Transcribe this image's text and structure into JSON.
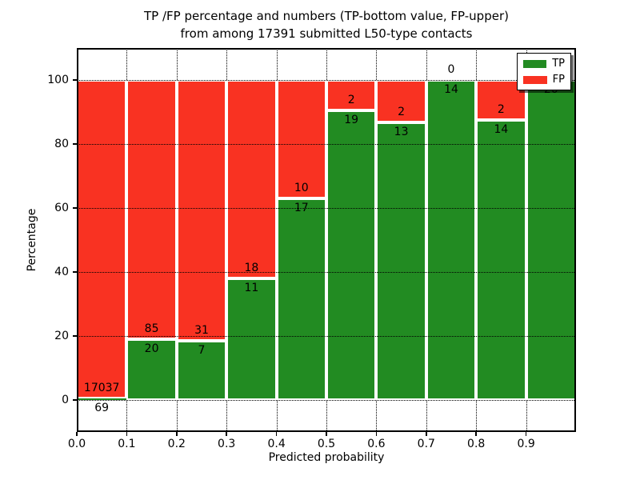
{
  "chart_data": {
    "type": "bar",
    "stacked": true,
    "orientation": "vertical",
    "title_lines": [
      "TP /FP percentage and numbers (TP-bottom value, FP-upper)",
      "from among 17391 submitted L50-type contacts"
    ],
    "xlabel": "Predicted probability",
    "ylabel": "Percentage",
    "xlim": [
      0,
      1
    ],
    "ylim": [
      -10,
      110
    ],
    "xtick_values": [
      0,
      0.1,
      0.2,
      0.3,
      0.4,
      0.5,
      0.6,
      0.7,
      0.8,
      0.9
    ],
    "xtick_labels": [
      "0.0",
      "0.1",
      "0.2",
      "0.3",
      "0.4",
      "0.5",
      "0.6",
      "0.7",
      "0.8",
      "0.9"
    ],
    "ytick_values": [
      0,
      20,
      40,
      60,
      80,
      100
    ],
    "ytick_labels": [
      "0",
      "20",
      "40",
      "60",
      "80",
      "100"
    ],
    "grid_style": "dotted",
    "bar_edge_color": "#ffffff",
    "value_semantics": "each bin drawn as percent of bin total (tp+fp=100%); labels show raw counts, TP below boundary, FP above",
    "bins": [
      {
        "range": [
          0.0,
          0.1
        ],
        "tp": 69,
        "fp": 17037
      },
      {
        "range": [
          0.1,
          0.2
        ],
        "tp": 20,
        "fp": 85
      },
      {
        "range": [
          0.2,
          0.3
        ],
        "tp": 7,
        "fp": 31
      },
      {
        "range": [
          0.3,
          0.4
        ],
        "tp": 11,
        "fp": 18
      },
      {
        "range": [
          0.4,
          0.5
        ],
        "tp": 17,
        "fp": 10
      },
      {
        "range": [
          0.5,
          0.6
        ],
        "tp": 19,
        "fp": 2
      },
      {
        "range": [
          0.6,
          0.7
        ],
        "tp": 13,
        "fp": 2
      },
      {
        "range": [
          0.7,
          0.8
        ],
        "tp": 14,
        "fp": 0
      },
      {
        "range": [
          0.8,
          0.9
        ],
        "tp": 14,
        "fp": 2
      },
      {
        "range": [
          0.9,
          1.0
        ],
        "tp": 20,
        "fp": 0
      }
    ],
    "colors": {
      "tp": "#228b22",
      "fp": "#f93222"
    },
    "legend": {
      "position": "upper-right",
      "entries": [
        {
          "label": "TP",
          "color": "#228b22"
        },
        {
          "label": "FP",
          "color": "#f93222"
        }
      ]
    }
  }
}
